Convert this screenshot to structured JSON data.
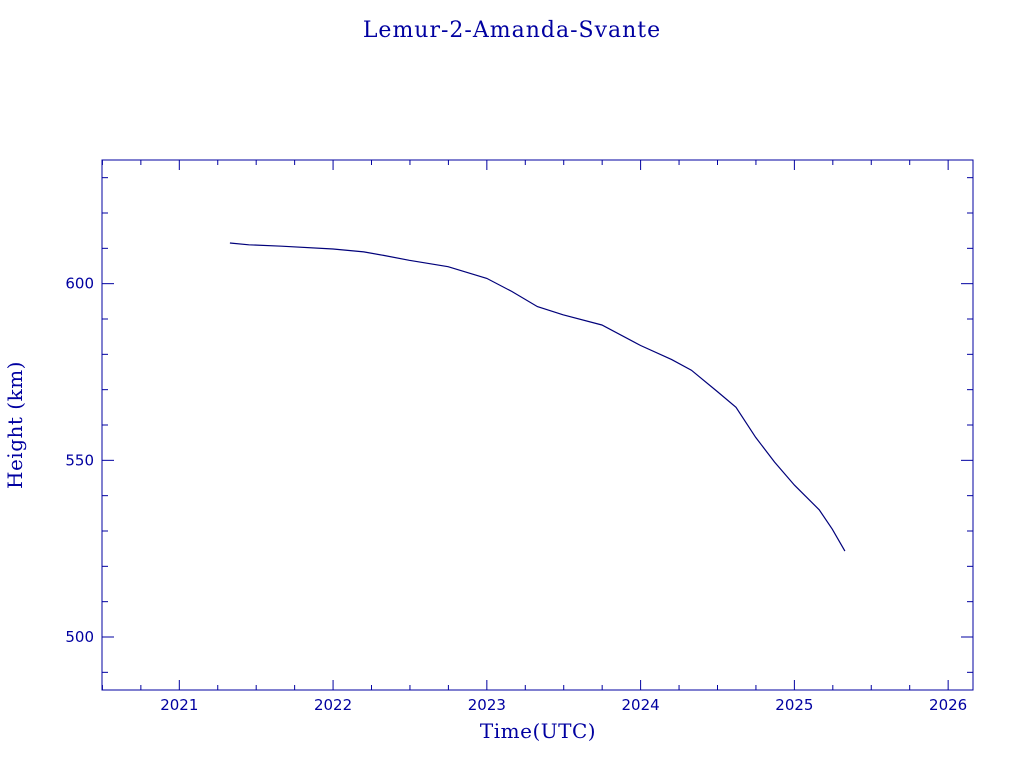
{
  "colors": {
    "foreground": "#0000a0",
    "line": "#00007a",
    "background": "#ffffff"
  },
  "chart_data": {
    "type": "line",
    "title": "Lemur-2-Amanda-Svante",
    "xlabel": "Time(UTC)",
    "ylabel": "Height (km)",
    "x_is_date": true,
    "xlim": [
      "2020-07-01",
      "2026-03-01"
    ],
    "ylim": [
      485,
      635
    ],
    "x_ticks": [
      "2021",
      "2022",
      "2023",
      "2024",
      "2025",
      "2026"
    ],
    "y_ticks": [
      "500",
      "550",
      "600"
    ],
    "grid": false,
    "legend": "none",
    "series": [
      {
        "x": [
          "2021-05-01",
          "2021-06-15",
          "2021-09-01",
          "2022-01-01",
          "2022-03-15",
          "2022-05-01",
          "2022-07-01",
          "2022-10-01",
          "2023-01-01",
          "2023-03-01",
          "2023-05-01",
          "2023-07-01",
          "2023-10-01",
          "2024-01-01",
          "2024-03-15",
          "2024-05-01",
          "2024-07-01",
          "2024-08-15",
          "2024-10-01",
          "2024-11-15",
          "2025-01-01",
          "2025-03-01",
          "2025-04-01",
          "2025-05-01"
        ],
        "y": [
          611.5,
          611.0,
          610.6,
          609.8,
          609.0,
          608.0,
          606.6,
          604.8,
          601.5,
          597.8,
          593.5,
          591.2,
          588.3,
          582.5,
          578.5,
          575.5,
          569.5,
          565.0,
          556.5,
          549.5,
          543.0,
          536.0,
          530.5,
          524.3
        ]
      }
    ]
  }
}
